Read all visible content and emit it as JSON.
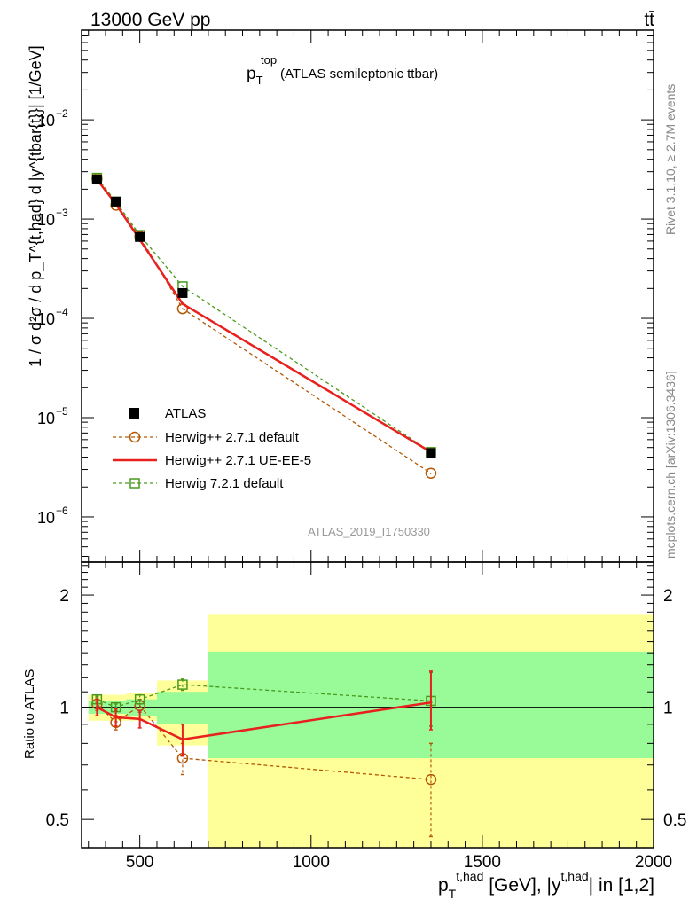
{
  "header": {
    "energy_label": "13000 GeV pp",
    "process_label": "tt̄"
  },
  "side_labels": {
    "rivet": "Rivet 3.1.10, ≥ 2.7M events",
    "mcplots": "mcplots.cern.ch [arXiv:1306.3436]"
  },
  "chart_data": [
    {
      "type": "line",
      "panel": "main",
      "title": {
        "main": "p",
        "sub": "T",
        "sup": "top",
        "rest": " (ATLAS semileptonic ttbar)"
      },
      "analysis_id": "ATLAS_2019_I1750330",
      "ylabel": "1 / σ d²σ / d p_T^{t,had} d |y^{tbar{t}}| [1/GeV]",
      "yscale": "log",
      "xlim": [
        330,
        2000
      ],
      "ylim": [
        3.5e-07,
        0.08
      ],
      "yticks": [
        {
          "value": 1e-06,
          "base": "10",
          "exp": "−6"
        },
        {
          "value": 1e-05,
          "base": "10",
          "exp": "−5"
        },
        {
          "value": 0.0001,
          "base": "10",
          "exp": "−4"
        },
        {
          "value": 0.001,
          "base": "10",
          "exp": "−3"
        },
        {
          "value": 0.01,
          "base": "10",
          "exp": "−2"
        }
      ],
      "legend_position": "lower-left",
      "series": [
        {
          "name": "ATLAS",
          "color": "#000000",
          "style": "marker",
          "x": [
            375,
            430,
            500,
            625,
            1350
          ],
          "y": [
            0.0025,
            0.0015,
            0.00066,
            0.00018,
            4.4e-06
          ]
        },
        {
          "name": "Herwig++ 2.7.1 default",
          "color": "#b35806",
          "style": "dashed-circle",
          "x": [
            375,
            430,
            500,
            625,
            1350
          ],
          "y": [
            0.00255,
            0.00138,
            0.00067,
            0.000125,
            2.75e-06
          ]
        },
        {
          "name": "Herwig++ 2.7.1 UE-EE-5",
          "color": "#e8211e",
          "style": "solid",
          "x": [
            375,
            430,
            500,
            625,
            1350
          ],
          "y": [
            0.0025,
            0.00142,
            0.00062,
            0.00014,
            4.5e-06
          ]
        },
        {
          "name": "Herwig 7.2.1 default",
          "color": "#4a9a1e",
          "style": "dashed-square",
          "x": [
            375,
            430,
            500,
            625,
            1350
          ],
          "y": [
            0.0026,
            0.0015,
            0.00069,
            0.00021,
            4.5e-06
          ]
        }
      ]
    },
    {
      "type": "line",
      "panel": "ratio",
      "ylabel": "Ratio to ATLAS",
      "xlabel": {
        "base": "p",
        "sub": "T",
        "sup": "t,had",
        "middle": " [GeV], |y",
        "sup2": "t,had",
        "end": "| in [1,2]"
      },
      "yscale": "log",
      "xlim": [
        330,
        2000
      ],
      "ylim": [
        0.42,
        2.45
      ],
      "xticks": [
        500,
        1000,
        1500,
        2000
      ],
      "yticks": [
        0.5,
        1,
        2
      ],
      "bands": [
        {
          "x0": 350,
          "x1": 400,
          "y1_lo": 0.96,
          "y1_hi": 1.04,
          "y2_lo": 0.92,
          "y2_hi": 1.08
        },
        {
          "x0": 400,
          "x1": 460,
          "y1_lo": 0.96,
          "y1_hi": 1.04,
          "y2_lo": 0.92,
          "y2_hi": 1.08
        },
        {
          "x0": 460,
          "x1": 550,
          "y1_lo": 0.95,
          "y1_hi": 1.05,
          "y2_lo": 0.92,
          "y2_hi": 1.09
        },
        {
          "x0": 550,
          "x1": 700,
          "y1_lo": 0.9,
          "y1_hi": 1.1,
          "y2_lo": 0.79,
          "y2_hi": 1.18
        },
        {
          "x0": 700,
          "x1": 2000,
          "y1_lo": 0.73,
          "y1_hi": 1.41,
          "y2_lo": 0.35,
          "y2_hi": 1.77
        }
      ],
      "band_colors": {
        "inner": "#98fb98",
        "outer": "#ffff99"
      },
      "series": [
        {
          "name": "Herwig++ 2.7.1 default",
          "color": "#b35806",
          "style": "dashed-circle",
          "x": [
            375,
            430,
            500,
            625,
            1350
          ],
          "y": [
            1.02,
            0.91,
            1.01,
            0.73,
            0.64
          ],
          "err_lo": [
            0.04,
            0.04,
            0.04,
            0.07,
            0.19
          ],
          "err_hi": [
            0.04,
            0.04,
            0.04,
            0.07,
            0.16
          ]
        },
        {
          "name": "Herwig++ 2.7.1 UE-EE-5",
          "color": "#e8211e",
          "style": "solid",
          "x": [
            375,
            430,
            500,
            625,
            1350
          ],
          "y": [
            1.0,
            0.94,
            0.93,
            0.82,
            1.03
          ],
          "err_lo": [
            0.05,
            0.05,
            0.05,
            0.08,
            0.16
          ],
          "err_hi": [
            0.05,
            0.05,
            0.05,
            0.08,
            0.22
          ]
        },
        {
          "name": "Herwig 7.2.1 default",
          "color": "#4a9a1e",
          "style": "dashed-square",
          "x": [
            375,
            430,
            500,
            625,
            1350
          ],
          "y": [
            1.05,
            1.0,
            1.05,
            1.15,
            1.04
          ],
          "err_lo": [
            0.02,
            0.02,
            0.03,
            0.04,
            0.15
          ],
          "err_hi": [
            0.02,
            0.02,
            0.03,
            0.04,
            0.2
          ]
        }
      ]
    }
  ]
}
